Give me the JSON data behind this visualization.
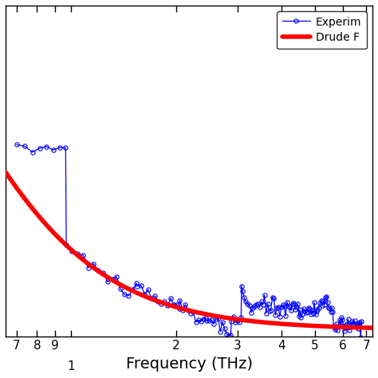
{
  "title": "",
  "xlabel": "Frequency (THz)",
  "ylabel": "",
  "legend_labels": [
    "Experim",
    "Drude F"
  ],
  "background_color": "#ffffff",
  "drude_sigma0": 1.65,
  "drude_gamma": 0.42,
  "xlim": [
    0.65,
    7.3
  ],
  "ylim": [
    -0.02,
    1.0
  ],
  "exp_seed": 10
}
